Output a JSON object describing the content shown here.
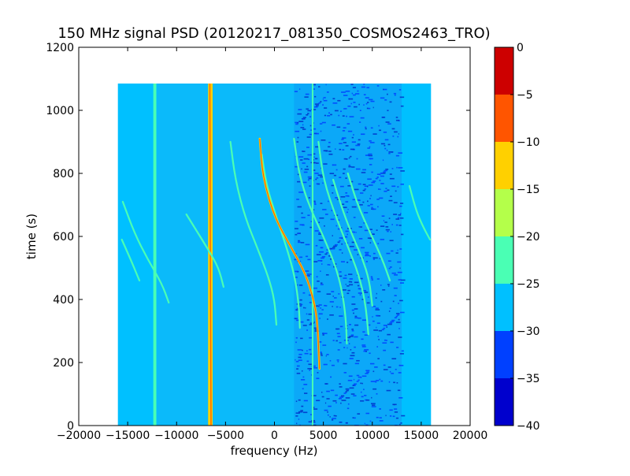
{
  "chart_data": {
    "type": "heatmap",
    "title": "150 MHz signal PSD (20120217_081350_COSMOS2463_TRO)",
    "xlabel": "frequency (Hz)",
    "ylabel": "time (s)",
    "xlim": [
      -20000,
      20000
    ],
    "ylim": [
      0,
      1200
    ],
    "xticks": [
      -20000,
      -15000,
      -10000,
      -5000,
      0,
      5000,
      10000,
      15000,
      20000
    ],
    "xtick_labels": [
      "−20000",
      "−15000",
      "−10000",
      "−5000",
      "0",
      "5000",
      "10000",
      "15000",
      "20000"
    ],
    "yticks": [
      0,
      200,
      400,
      600,
      800,
      1000,
      1200
    ],
    "ytick_labels": [
      "0",
      "200",
      "400",
      "600",
      "800",
      "1000",
      "1200"
    ],
    "data_extent": {
      "x": [
        -16000,
        16000
      ],
      "y": [
        0,
        1085
      ]
    },
    "colorbar": {
      "levels": [
        -40,
        -35,
        -30,
        -25,
        -20,
        -15,
        -10,
        -5,
        0
      ],
      "tick_labels": [
        "−40",
        "−35",
        "−30",
        "−25",
        "−20",
        "−15",
        "−10",
        "−5",
        "0"
      ],
      "colors": [
        "#0000cd",
        "#0040ff",
        "#00c0ff",
        "#4affb4",
        "#b4ff4a",
        "#ffd000",
        "#ff5500",
        "#cd0000"
      ]
    },
    "background_level": -27,
    "noise_band": {
      "x": [
        2000,
        13000
      ],
      "level": -33
    },
    "vertical_signals": [
      {
        "x0": -12300,
        "x1": -12150,
        "level": -22
      },
      {
        "x0": -6700,
        "x1": -6400,
        "level": -12
      },
      {
        "x0": 3900,
        "x1": 3900,
        "level": -25
      }
    ],
    "doppler_tracks": [
      {
        "level": -22,
        "points": [
          [
            -15500,
            710
          ],
          [
            -14300,
            610
          ],
          [
            -13000,
            530
          ],
          [
            -11500,
            450
          ],
          [
            -10800,
            390
          ]
        ]
      },
      {
        "level": -23,
        "points": [
          [
            -15600,
            590
          ],
          [
            -14600,
            520
          ],
          [
            -13800,
            460
          ]
        ]
      },
      {
        "level": -22,
        "points": [
          [
            -9000,
            670
          ],
          [
            -8000,
            620
          ],
          [
            -6800,
            560
          ],
          [
            -5700,
            500
          ],
          [
            -5200,
            440
          ]
        ]
      },
      {
        "level": -21,
        "points": [
          [
            -4500,
            900
          ],
          [
            -4000,
            780
          ],
          [
            -3000,
            660
          ],
          [
            -1700,
            560
          ],
          [
            -600,
            470
          ],
          [
            0,
            400
          ],
          [
            200,
            320
          ]
        ]
      },
      {
        "level": -22,
        "points": [
          [
            -1300,
            860
          ],
          [
            -800,
            760
          ],
          [
            200,
            660
          ],
          [
            1300,
            560
          ],
          [
            2100,
            470
          ],
          [
            2500,
            380
          ],
          [
            2600,
            310
          ]
        ]
      },
      {
        "level": -14,
        "points": [
          [
            -1500,
            910
          ],
          [
            -1200,
            790
          ],
          [
            0,
            660
          ],
          [
            1800,
            560
          ],
          [
            3200,
            480
          ],
          [
            4000,
            400
          ],
          [
            4400,
            330
          ],
          [
            4600,
            180
          ]
        ]
      },
      {
        "level": -22,
        "points": [
          [
            2000,
            910
          ],
          [
            2500,
            800
          ],
          [
            3500,
            700
          ],
          [
            5000,
            600
          ],
          [
            6200,
            510
          ],
          [
            6900,
            430
          ],
          [
            7300,
            340
          ],
          [
            7400,
            260
          ]
        ]
      },
      {
        "level": -21,
        "points": [
          [
            4500,
            900
          ],
          [
            5000,
            780
          ],
          [
            6300,
            660
          ],
          [
            7600,
            560
          ],
          [
            8600,
            480
          ],
          [
            9300,
            390
          ],
          [
            9600,
            290
          ]
        ]
      },
      {
        "level": -23,
        "points": [
          [
            6000,
            780
          ],
          [
            7000,
            680
          ],
          [
            8000,
            600
          ],
          [
            9000,
            530
          ],
          [
            9700,
            460
          ],
          [
            10000,
            380
          ]
        ]
      },
      {
        "level": -23,
        "points": [
          [
            7500,
            800
          ],
          [
            8500,
            700
          ],
          [
            9800,
            610
          ],
          [
            11000,
            530
          ],
          [
            11800,
            460
          ]
        ]
      },
      {
        "level": -23,
        "points": [
          [
            13800,
            760
          ],
          [
            14500,
            680
          ],
          [
            15200,
            630
          ],
          [
            15900,
            590
          ]
        ]
      }
    ]
  }
}
